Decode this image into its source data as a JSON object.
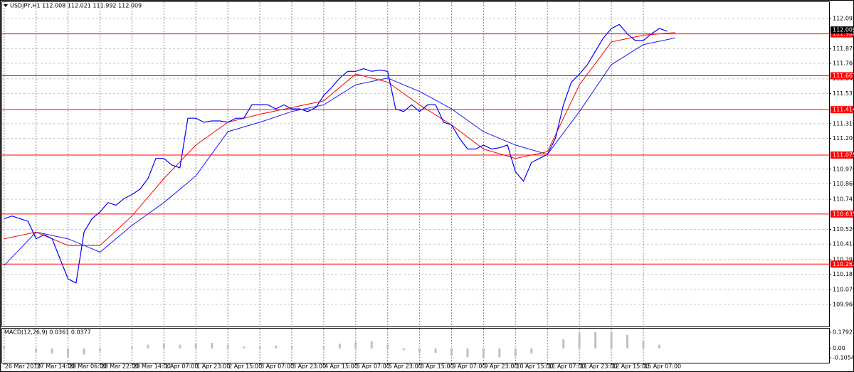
{
  "header": "USDJPY,H1  112.008 112.021 111.992 112.009",
  "price_chart": {
    "type": "line",
    "x": [
      0,
      4,
      8,
      12,
      16,
      20,
      24,
      28,
      32,
      36,
      40,
      44,
      48,
      52,
      56,
      60,
      64,
      68,
      72,
      76,
      80,
      84,
      88,
      92,
      96,
      100,
      104,
      108,
      112,
      116,
      120,
      124,
      128,
      132,
      136,
      140,
      144,
      148,
      152,
      156,
      160,
      164,
      168,
      172,
      176,
      180,
      184,
      188,
      192,
      196,
      200,
      204,
      208,
      212,
      216,
      220,
      224,
      228,
      232,
      236,
      240,
      244,
      248,
      252,
      256,
      260,
      264,
      268,
      272,
      276,
      280,
      284,
      288,
      292,
      296,
      300,
      304,
      308,
      312,
      316,
      320,
      324,
      328,
      332
    ],
    "close": [
      110.6,
      110.62,
      110.6,
      110.58,
      110.45,
      110.48,
      110.45,
      110.3,
      110.15,
      110.12,
      110.5,
      110.6,
      110.65,
      110.72,
      110.7,
      110.75,
      110.78,
      110.82,
      110.9,
      111.05,
      111.05,
      111.0,
      110.98,
      111.35,
      111.35,
      111.32,
      111.33,
      111.33,
      111.32,
      111.35,
      111.35,
      111.45,
      111.45,
      111.45,
      111.42,
      111.45,
      111.42,
      111.42,
      111.4,
      111.43,
      111.52,
      111.58,
      111.65,
      111.7,
      111.7,
      111.72,
      111.7,
      111.71,
      111.7,
      111.42,
      111.4,
      111.45,
      111.4,
      111.45,
      111.45,
      111.32,
      111.3,
      111.2,
      111.12,
      111.12,
      111.15,
      111.12,
      111.13,
      111.15,
      110.95,
      110.88,
      111.02,
      111.05,
      111.08,
      111.2,
      111.45,
      111.62,
      111.68,
      111.75,
      111.85,
      111.95,
      112.02,
      112.05,
      111.98,
      111.93,
      111.93,
      111.98,
      112.02,
      112.0
    ],
    "color": "#0000ff",
    "ma_x": [
      0,
      16,
      32,
      48,
      64,
      80,
      96,
      112,
      128,
      144,
      160,
      176,
      192,
      208,
      224,
      240,
      256,
      272,
      288,
      304,
      320,
      336
    ],
    "ma_slow": [
      110.25,
      110.5,
      110.45,
      110.35,
      110.55,
      110.72,
      110.92,
      111.25,
      111.32,
      111.4,
      111.45,
      111.6,
      111.65,
      111.55,
      111.42,
      111.25,
      111.15,
      111.08,
      111.4,
      111.75,
      111.9,
      111.95
    ],
    "ma_slow_color": "#1a1aff",
    "ma_fast": [
      110.45,
      110.5,
      110.4,
      110.4,
      110.62,
      110.9,
      111.15,
      111.32,
      111.38,
      111.43,
      111.48,
      111.68,
      111.62,
      111.45,
      111.3,
      111.12,
      111.05,
      111.1,
      111.6,
      111.92,
      111.97,
      111.99
    ],
    "ma_fast_color": "#ff0000",
    "xlim": [
      -1,
      413
    ],
    "ylim": [
      109.795,
      112.217
    ],
    "yticks": [
      {
        "value": 112.095,
        "label": "112.095"
      },
      {
        "value": 111.87,
        "label": "111.870"
      },
      {
        "value": 111.76,
        "label": "111.760"
      },
      {
        "value": 111.645,
        "label": "111.645"
      },
      {
        "value": 111.535,
        "label": "111.535"
      },
      {
        "value": 111.31,
        "label": "111.310"
      },
      {
        "value": 111.2,
        "label": "111.200"
      },
      {
        "value": 110.97,
        "label": "110.970"
      },
      {
        "value": 110.86,
        "label": "110.860"
      },
      {
        "value": 110.745,
        "label": "110.745"
      },
      {
        "value": 110.52,
        "label": "110.520"
      },
      {
        "value": 110.41,
        "label": "110.410"
      },
      {
        "value": 110.295,
        "label": "110.295"
      },
      {
        "value": 110.185,
        "label": "110.185"
      },
      {
        "value": 110.07,
        "label": "110.070"
      },
      {
        "value": 109.96,
        "label": "109.960"
      }
    ],
    "levels": [
      {
        "value": 111.98,
        "label": "111.980"
      },
      {
        "value": 111.667,
        "label": "111.667"
      },
      {
        "value": 111.414,
        "label": "111.414"
      },
      {
        "value": 111.075,
        "label": "111.075"
      },
      {
        "value": 110.635,
        "label": "110.635"
      },
      {
        "value": 110.261,
        "label": "110.261"
      }
    ],
    "level_color": "#ff0000",
    "current": {
      "value": 112.009,
      "label": "112.009"
    },
    "time_x": [
      0,
      16,
      32,
      48,
      64,
      80,
      96,
      112,
      128,
      144,
      160,
      176,
      192,
      208,
      224,
      240,
      256,
      272,
      288,
      304,
      320
    ],
    "time_labels": [
      "26 Mar 2019",
      "27 Mar 14:00",
      "28 Mar 06:00",
      "28 Mar 22:00",
      "29 Mar 14:00",
      "1 Apr 07:00",
      "1 Apr 23:00",
      "2 Apr 15:00",
      "3 Apr 07:00",
      "3 Apr 23:00",
      "4 Apr 15:00",
      "5 Apr 07:00",
      "5 Apr 23:00",
      "8 Apr 15:00",
      "9 Apr 07:00",
      "9 Apr 23:00",
      "10 Apr 15:00",
      "11 Apr 07:00",
      "11 Apr 23:00",
      "12 Apr 15:00",
      "15 Apr 07:00"
    ]
  },
  "macd": {
    "type": "bar",
    "label": "MACD(12,26,9) 0.0361 0.0377",
    "x": [
      0,
      8,
      16,
      24,
      32,
      40,
      48,
      56,
      64,
      72,
      80,
      88,
      96,
      104,
      112,
      120,
      128,
      136,
      144,
      152,
      160,
      168,
      176,
      184,
      192,
      200,
      208,
      216,
      224,
      232,
      240,
      248,
      256,
      264,
      272,
      280,
      288,
      296,
      304,
      312,
      320,
      328
    ],
    "values": [
      0.03,
      0.0,
      -0.04,
      -0.06,
      -0.1,
      -0.07,
      -0.03,
      0.0,
      0.02,
      0.04,
      0.05,
      0.04,
      0.05,
      0.06,
      0.04,
      0.02,
      0.02,
      0.03,
      0.02,
      0.0,
      0.02,
      0.05,
      0.07,
      0.08,
      0.04,
      -0.02,
      -0.04,
      -0.05,
      -0.08,
      -0.1,
      -0.11,
      -0.1,
      -0.09,
      -0.06,
      0.0,
      0.1,
      0.17,
      0.18,
      0.18,
      0.15,
      0.08,
      0.04
    ],
    "color": "#c0c0c0",
    "ylim": [
      -0.161,
      0.219
    ],
    "yticks": [
      0.1792,
      {
        "value": 0,
        "label": "0.00"
      },
      -0.1054
    ]
  }
}
